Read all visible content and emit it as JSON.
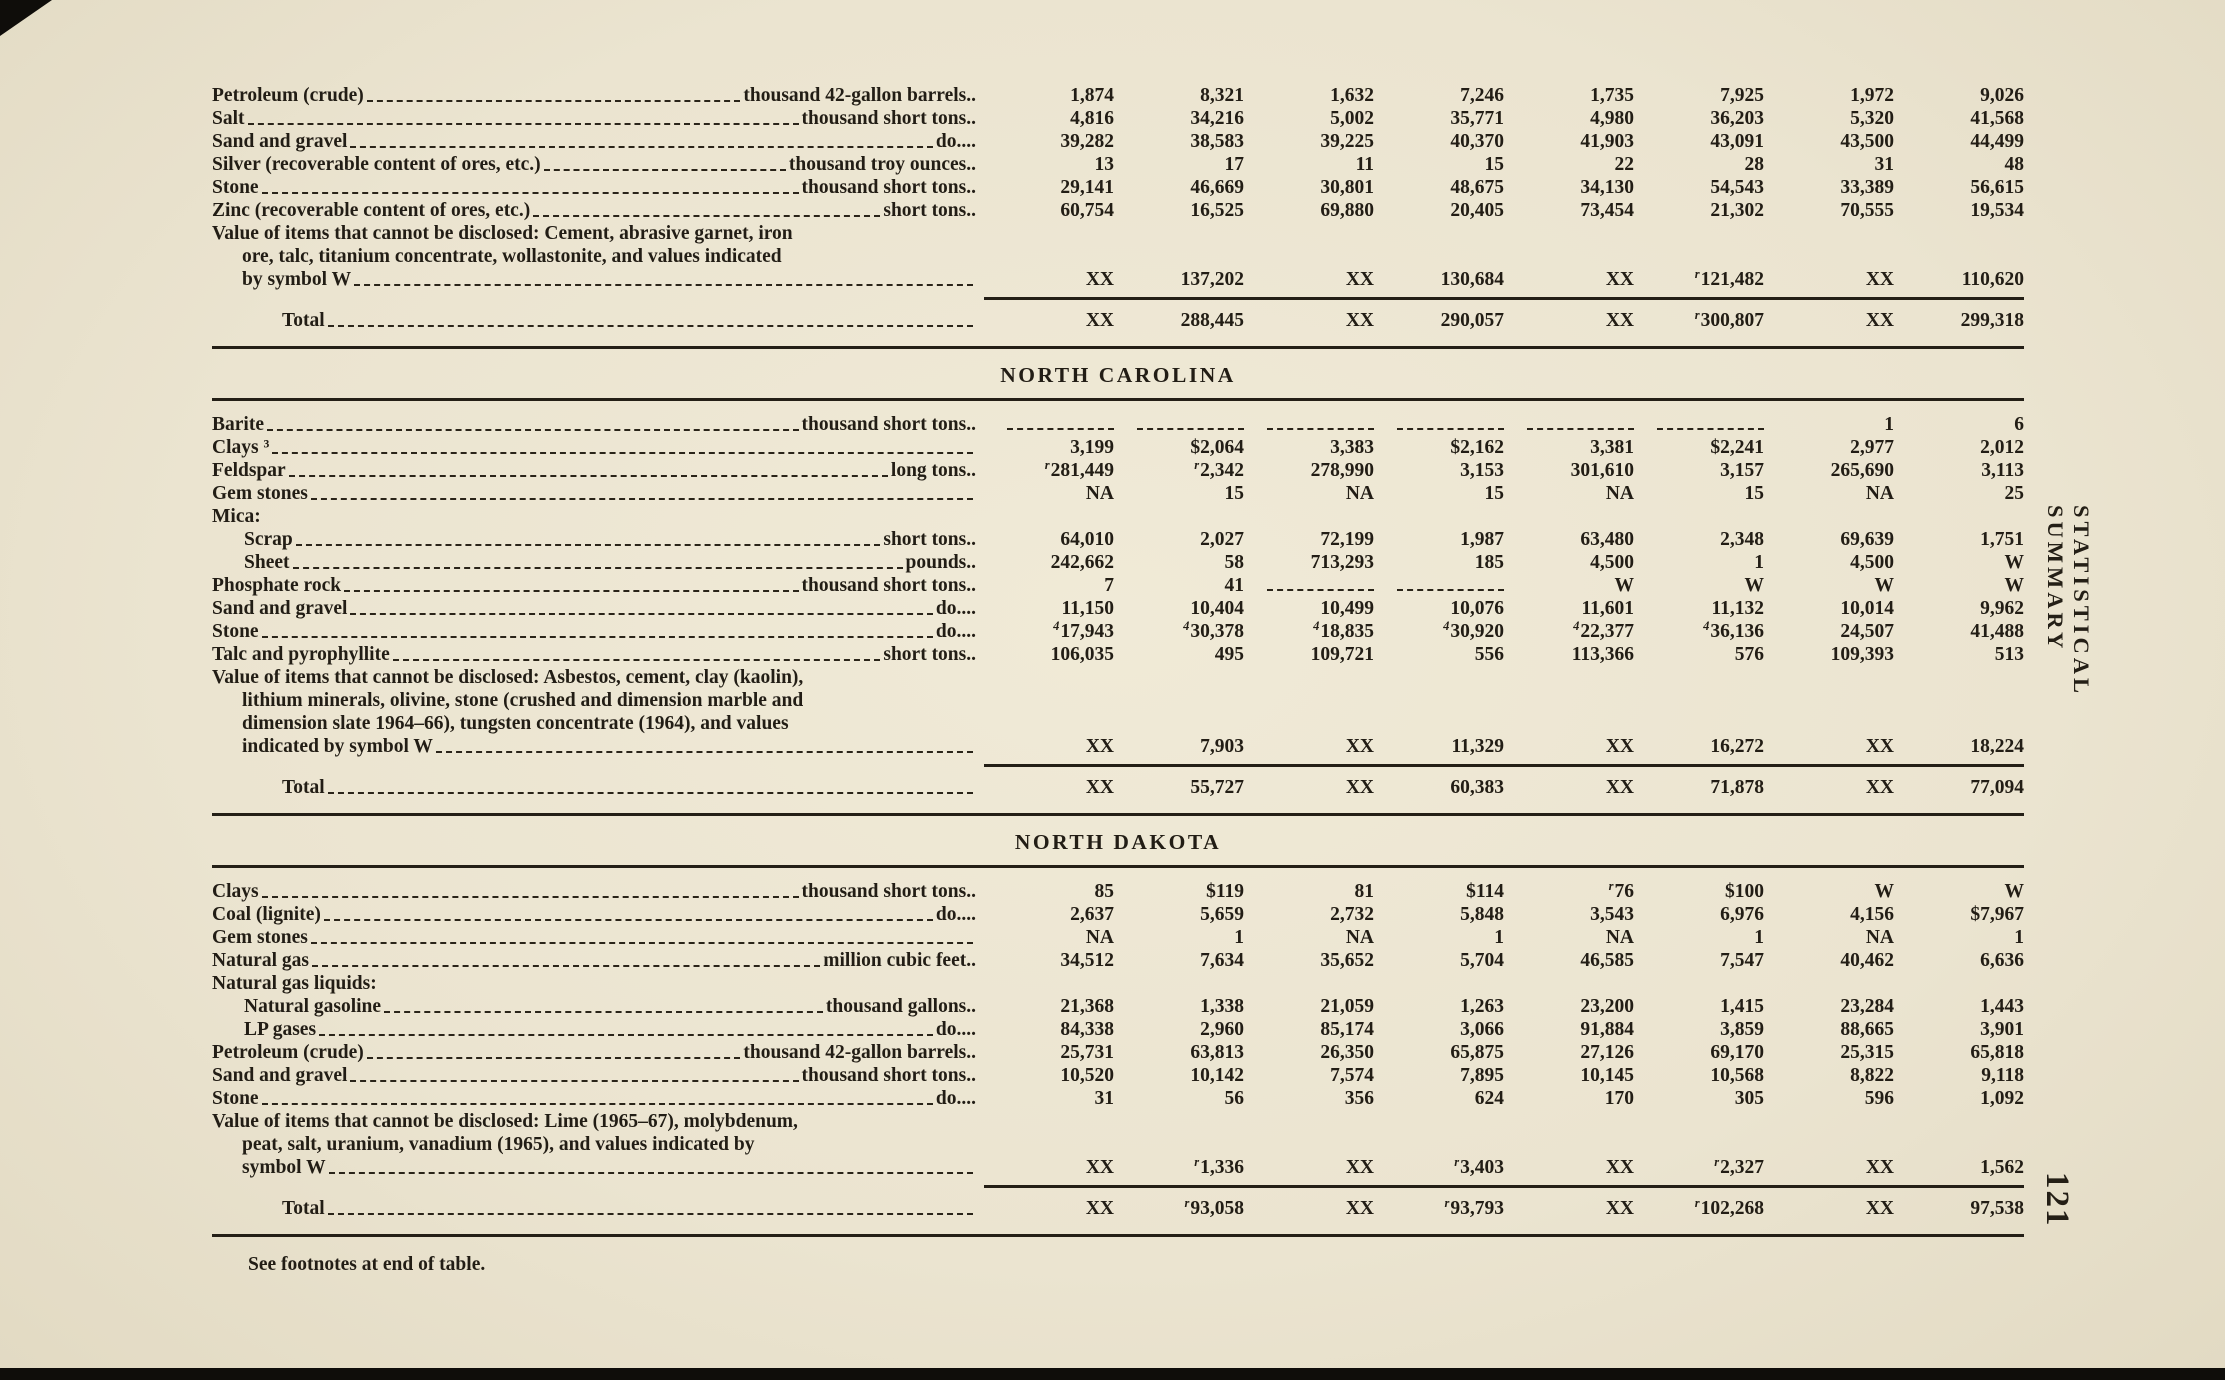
{
  "page": {
    "side_label": "STATISTICAL SUMMARY",
    "page_number": "121",
    "footnote": "See footnotes at end of table.",
    "paper_color": "#ece6d2",
    "ink_color": "#241f16"
  },
  "table": {
    "sections": [
      {
        "header": "",
        "rows": [
          {
            "type": "data",
            "label": "Petroleum (crude)",
            "unit": "thousand 42-gallon barrels..",
            "indent": 0,
            "values": [
              "1,874",
              "8,321",
              "1,632",
              "7,246",
              "1,735",
              "7,925",
              "1,972",
              "9,026"
            ]
          },
          {
            "type": "data",
            "label": "Salt",
            "unit": "thousand short tons..",
            "indent": 0,
            "values": [
              "4,816",
              "34,216",
              "5,002",
              "35,771",
              "4,980",
              "36,203",
              "5,320",
              "41,568"
            ]
          },
          {
            "type": "data",
            "label": "Sand and gravel",
            "unit": "do....",
            "indent": 0,
            "values": [
              "39,282",
              "38,583",
              "39,225",
              "40,370",
              "41,903",
              "43,091",
              "43,500",
              "44,499"
            ]
          },
          {
            "type": "data",
            "label": "Silver (recoverable content of ores, etc.)",
            "unit": "thousand troy ounces..",
            "indent": 0,
            "values": [
              "13",
              "17",
              "11",
              "15",
              "22",
              "28",
              "31",
              "48"
            ]
          },
          {
            "type": "data",
            "label": "Stone",
            "unit": "thousand short tons..",
            "indent": 0,
            "values": [
              "29,141",
              "46,669",
              "30,801",
              "48,675",
              "34,130",
              "54,543",
              "33,389",
              "56,615"
            ]
          },
          {
            "type": "data",
            "label": "Zinc (recoverable content of ores, etc.)",
            "unit": "short tons..",
            "indent": 0,
            "values": [
              "60,754",
              "16,525",
              "69,880",
              "20,405",
              "73,454",
              "21,302",
              "70,555",
              "19,534"
            ]
          },
          {
            "type": "note",
            "lines": [
              "Value of items that cannot be disclosed: Cement, abrasive garnet, iron",
              "ore, talc, titanium concentrate, wollastonite, and values indicated",
              "by symbol W"
            ],
            "values": [
              "XX",
              "137,202",
              "XX",
              "130,684",
              "XX",
              "r 121,482",
              "XX",
              "110,620"
            ]
          },
          {
            "type": "total",
            "label": "Total",
            "values": [
              "XX",
              "288,445",
              "XX",
              "290,057",
              "XX",
              "r 300,807",
              "XX",
              "299,318"
            ]
          }
        ]
      },
      {
        "header": "NORTH CAROLINA",
        "rows": [
          {
            "type": "data",
            "label": "Barite",
            "unit": "thousand short tons..",
            "indent": 0,
            "values": [
              "",
              "",
              "",
              "",
              "",
              "",
              "1",
              "6"
            ]
          },
          {
            "type": "data",
            "label": "Clays ³",
            "unit": "",
            "indent": 0,
            "values": [
              "3,199",
              "$2,064",
              "3,383",
              "$2,162",
              "3,381",
              "$2,241",
              "2,977",
              "2,012"
            ]
          },
          {
            "type": "data",
            "label": "Feldspar",
            "unit": "long tons..",
            "indent": 0,
            "values": [
              "r 281,449",
              "r 2,342",
              "278,990",
              "3,153",
              "301,610",
              "3,157",
              "265,690",
              "3,113"
            ]
          },
          {
            "type": "data",
            "label": "Gem stones",
            "unit": "",
            "indent": 0,
            "values": [
              "NA",
              "15",
              "NA",
              "15",
              "NA",
              "15",
              "NA",
              "25"
            ]
          },
          {
            "type": "group",
            "label": "Mica:"
          },
          {
            "type": "data",
            "label": "Scrap",
            "unit": "short tons..",
            "indent": 1,
            "values": [
              "64,010",
              "2,027",
              "72,199",
              "1,987",
              "63,480",
              "2,348",
              "69,639",
              "1,751"
            ]
          },
          {
            "type": "data",
            "label": "Sheet",
            "unit": "pounds..",
            "indent": 1,
            "values": [
              "242,662",
              "58",
              "713,293",
              "185",
              "4,500",
              "1",
              "4,500",
              "W"
            ]
          },
          {
            "type": "data",
            "label": "Phosphate rock",
            "unit": "thousand short tons..",
            "indent": 0,
            "values": [
              "7",
              "41",
              "",
              "",
              "W",
              "W",
              "W",
              "W"
            ]
          },
          {
            "type": "data",
            "label": "Sand and gravel",
            "unit": "do....",
            "indent": 0,
            "values": [
              "11,150",
              "10,404",
              "10,499",
              "10,076",
              "11,601",
              "11,132",
              "10,014",
              "9,962"
            ]
          },
          {
            "type": "data",
            "label": "Stone",
            "unit": "do....",
            "indent": 0,
            "values": [
              "4 17,943",
              "4 30,378",
              "4 18,835",
              "4 30,920",
              "4 22,377",
              "4 36,136",
              "24,507",
              "41,488"
            ]
          },
          {
            "type": "data",
            "label": "Talc and pyrophyllite",
            "unit": "short tons..",
            "indent": 0,
            "values": [
              "106,035",
              "495",
              "109,721",
              "556",
              "113,366",
              "576",
              "109,393",
              "513"
            ]
          },
          {
            "type": "note",
            "lines": [
              "Value of items that cannot be disclosed: Asbestos, cement, clay (kaolin),",
              "lithium minerals, olivine, stone (crushed and dimension marble and",
              "dimension slate 1964–66), tungsten concentrate (1964), and values",
              "indicated by symbol W"
            ],
            "values": [
              "XX",
              "7,903",
              "XX",
              "11,329",
              "XX",
              "16,272",
              "XX",
              "18,224"
            ]
          },
          {
            "type": "total",
            "label": "Total",
            "values": [
              "XX",
              "55,727",
              "XX",
              "60,383",
              "XX",
              "71,878",
              "XX",
              "77,094"
            ]
          }
        ]
      },
      {
        "header": "NORTH DAKOTA",
        "rows": [
          {
            "type": "data",
            "label": "Clays",
            "unit": "thousand short tons..",
            "indent": 0,
            "values": [
              "85",
              "$119",
              "81",
              "$114",
              "r 76",
              "$100",
              "W",
              "W"
            ]
          },
          {
            "type": "data",
            "label": "Coal (lignite)",
            "unit": "do....",
            "indent": 0,
            "values": [
              "2,637",
              "5,659",
              "2,732",
              "5,848",
              "3,543",
              "6,976",
              "4,156",
              "$7,967"
            ]
          },
          {
            "type": "data",
            "label": "Gem stones",
            "unit": "",
            "indent": 0,
            "values": [
              "NA",
              "1",
              "NA",
              "1",
              "NA",
              "1",
              "NA",
              "1"
            ]
          },
          {
            "type": "data",
            "label": "Natural gas",
            "unit": "million cubic feet..",
            "indent": 0,
            "values": [
              "34,512",
              "7,634",
              "35,652",
              "5,704",
              "46,585",
              "7,547",
              "40,462",
              "6,636"
            ]
          },
          {
            "type": "group",
            "label": "Natural gas liquids:"
          },
          {
            "type": "data",
            "label": "Natural gasoline",
            "unit": "thousand gallons..",
            "indent": 1,
            "values": [
              "21,368",
              "1,338",
              "21,059",
              "1,263",
              "23,200",
              "1,415",
              "23,284",
              "1,443"
            ]
          },
          {
            "type": "data",
            "label": "LP gases",
            "unit": "do....",
            "indent": 1,
            "values": [
              "84,338",
              "2,960",
              "85,174",
              "3,066",
              "91,884",
              "3,859",
              "88,665",
              "3,901"
            ]
          },
          {
            "type": "data",
            "label": "Petroleum (crude)",
            "unit": "thousand 42-gallon barrels..",
            "indent": 0,
            "values": [
              "25,731",
              "63,813",
              "26,350",
              "65,875",
              "27,126",
              "69,170",
              "25,315",
              "65,818"
            ]
          },
          {
            "type": "data",
            "label": "Sand and gravel",
            "unit": "thousand short tons..",
            "indent": 0,
            "values": [
              "10,520",
              "10,142",
              "7,574",
              "7,895",
              "10,145",
              "10,568",
              "8,822",
              "9,118"
            ]
          },
          {
            "type": "data",
            "label": "Stone",
            "unit": "do....",
            "indent": 0,
            "values": [
              "31",
              "56",
              "356",
              "624",
              "170",
              "305",
              "596",
              "1,092"
            ]
          },
          {
            "type": "note",
            "lines": [
              "Value of items that cannot be disclosed: Lime (1965–67), molybdenum,",
              "peat, salt, uranium, vanadium (1965), and values indicated by",
              "symbol W"
            ],
            "values": [
              "XX",
              "r 1,336",
              "XX",
              "r 3,403",
              "XX",
              "r 2,327",
              "XX",
              "1,562"
            ]
          },
          {
            "type": "total",
            "label": "Total",
            "values": [
              "XX",
              "r 93,058",
              "XX",
              "r 93,793",
              "XX",
              "r 102,268",
              "XX",
              "97,538"
            ]
          }
        ]
      }
    ]
  }
}
